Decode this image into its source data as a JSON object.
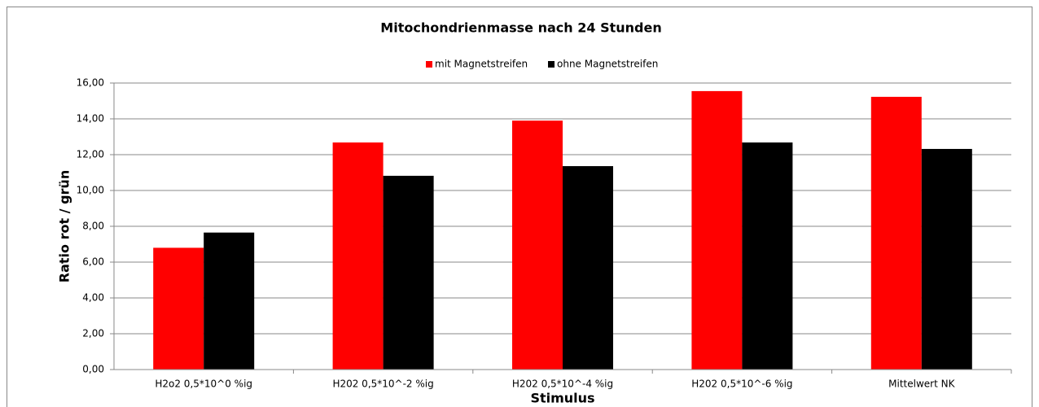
{
  "chart_data": {
    "type": "bar",
    "title": "Mitochondrienmasse nach 24 Stunden",
    "x_label": "Stimulus",
    "y_label": "Ratio rot / grün",
    "categories": [
      "H2o2 0,5*10^0 %ig",
      "H202 0,5*10^-2 %ig",
      "H202 0,5*10^-4 %ig",
      "H202 0,5*10^-6 %ig",
      "Mittelwert NK"
    ],
    "series": [
      {
        "name": "mit Magnetstreifen",
        "color": "#ff0000",
        "values": [
          6.8,
          12.68,
          13.9,
          15.55,
          15.23
        ]
      },
      {
        "name": "ohne Magnetstreifen",
        "color": "#000000",
        "values": [
          7.65,
          10.82,
          11.36,
          12.68,
          12.32
        ]
      }
    ],
    "ylim": [
      0,
      16
    ],
    "yticks": [
      {
        "value": 0,
        "label": "0,00"
      },
      {
        "value": 2,
        "label": "2,00"
      },
      {
        "value": 4,
        "label": "4,00"
      },
      {
        "value": 6,
        "label": "6,00"
      },
      {
        "value": 8,
        "label": "8,00"
      },
      {
        "value": 10,
        "label": "10,00"
      },
      {
        "value": 12,
        "label": "12,00"
      },
      {
        "value": 14,
        "label": "14,00"
      },
      {
        "value": 16,
        "label": "16,00"
      }
    ],
    "grid": true,
    "legend": "top"
  }
}
